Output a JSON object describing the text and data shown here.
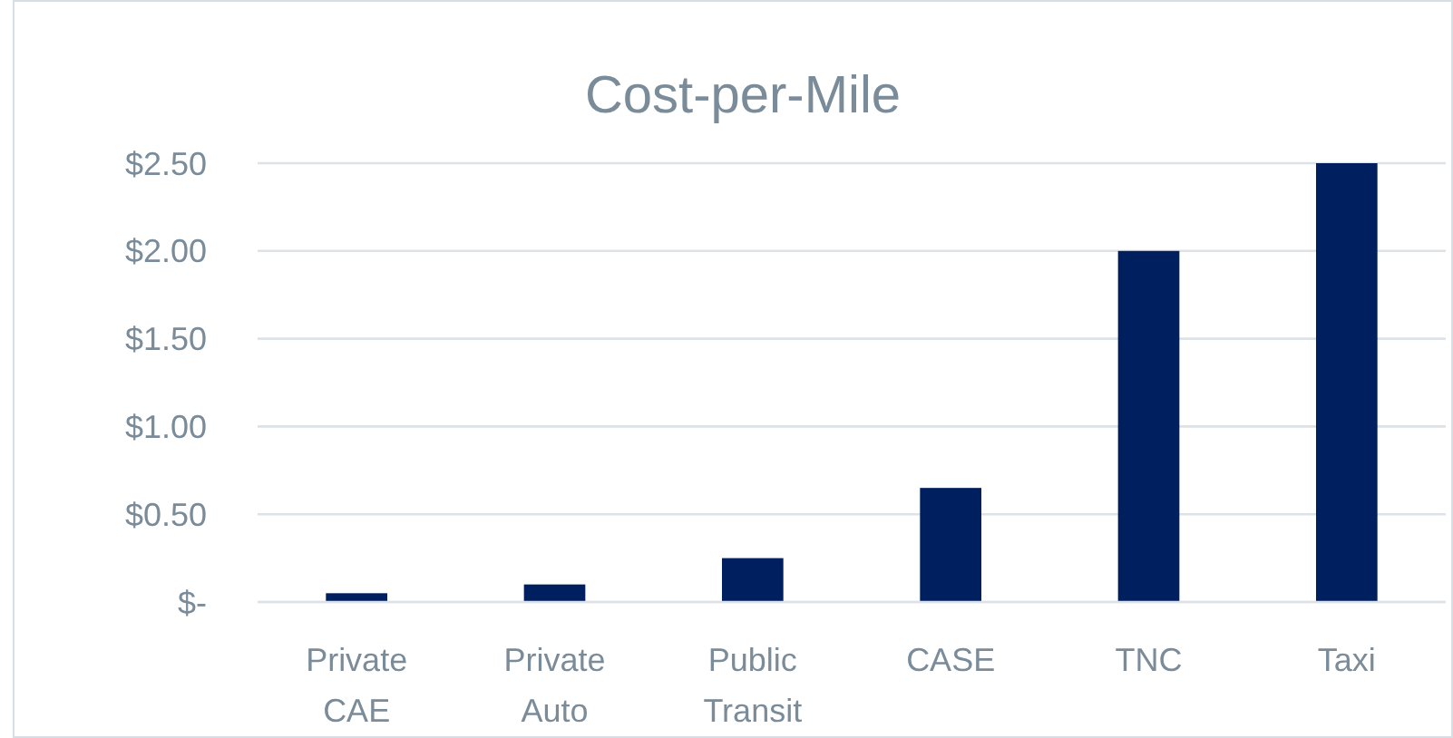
{
  "chart_data": {
    "type": "bar",
    "title": "Cost-per-Mile",
    "categories": [
      "Private CAE",
      "Private Auto",
      "Public Transit",
      "CASE",
      "TNC",
      "Taxi"
    ],
    "values": [
      0.05,
      0.1,
      0.25,
      0.65,
      2.0,
      2.5
    ],
    "color": "#001f5f",
    "ylim": [
      0,
      2.5
    ],
    "yticks": [
      {
        "value": 0,
        "label": "$-"
      },
      {
        "value": 0.5,
        "label": "$0.50"
      },
      {
        "value": 1,
        "label": "$1.00"
      },
      {
        "value": 1.5,
        "label": "$1.50"
      },
      {
        "value": 2,
        "label": "$2.00"
      },
      {
        "value": 2.5,
        "label": "$2.50"
      }
    ],
    "grid": "y"
  }
}
